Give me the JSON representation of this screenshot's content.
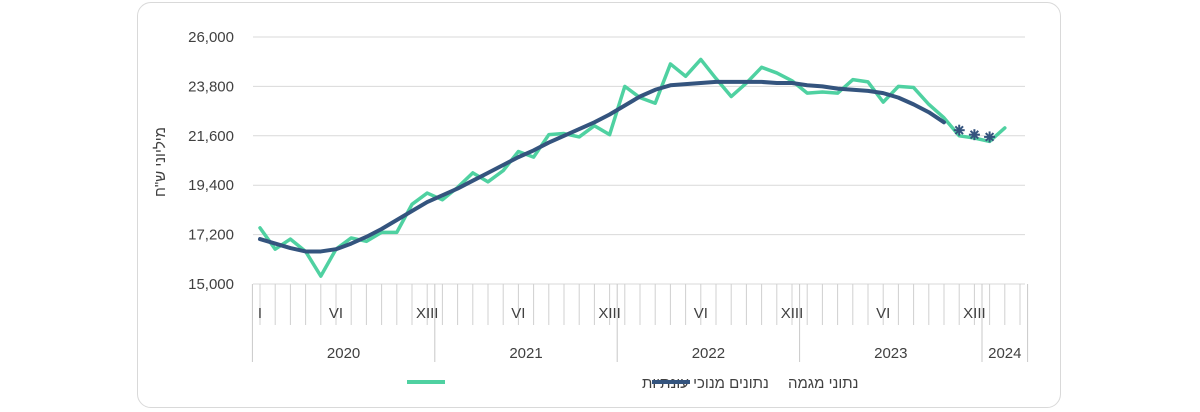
{
  "chart_data": {
    "type": "line",
    "ylabel": "מיליוני ש\"ח",
    "ylim": [
      15000,
      26000
    ],
    "y_ticks": [
      "15,000",
      "17,200",
      "19,400",
      "21,600",
      "23,800",
      "26,000"
    ],
    "y_tick_values": [
      15000,
      17200,
      19400,
      21600,
      23800,
      26000
    ],
    "month_tick_labels": [
      "I",
      "VI",
      "XIII",
      "VI",
      "XIII",
      "VI",
      "XIII",
      "VI",
      "XIII"
    ],
    "month_tick_index": [
      0,
      5,
      11,
      17,
      23,
      29,
      35,
      41,
      47
    ],
    "year_labels": [
      "2020",
      "2021",
      "2022",
      "2023",
      "2024"
    ],
    "year_start_index": [
      0,
      12,
      24,
      36,
      48
    ],
    "grid": true,
    "legend_position": "bottom",
    "series": [
      {
        "name": "נתונים מנוכי עונתיות",
        "color": "#4fd1a1",
        "values": [
          17500,
          16550,
          17000,
          16450,
          15350,
          16550,
          17050,
          16900,
          17300,
          17300,
          18550,
          19050,
          18750,
          19300,
          19950,
          19550,
          20050,
          20900,
          20650,
          21650,
          21700,
          21550,
          22050,
          21650,
          23800,
          23300,
          23050,
          24800,
          24250,
          25000,
          24150,
          23350,
          23950,
          24650,
          24400,
          24050,
          23500,
          23550,
          23500,
          24100,
          24000,
          23100,
          23800,
          23750,
          23000,
          22400,
          21600,
          21500,
          21350,
          21950
        ]
      },
      {
        "name": "נתוני מגמה",
        "color": "#34547e",
        "values": [
          17000,
          16800,
          16600,
          16450,
          16450,
          16550,
          16800,
          17100,
          17450,
          17850,
          18250,
          18650,
          18950,
          19250,
          19600,
          19950,
          20300,
          20650,
          20950,
          21300,
          21600,
          21900,
          22200,
          22550,
          22950,
          23350,
          23650,
          23850,
          23900,
          23950,
          24000,
          24000,
          24000,
          24000,
          23950,
          23950,
          23850,
          23800,
          23700,
          23650,
          23600,
          23500,
          23300,
          23000,
          22650,
          22200
        ],
        "estimates": [
          21850,
          21650,
          21550
        ],
        "estimate_index": [
          46,
          47,
          48
        ]
      }
    ]
  }
}
